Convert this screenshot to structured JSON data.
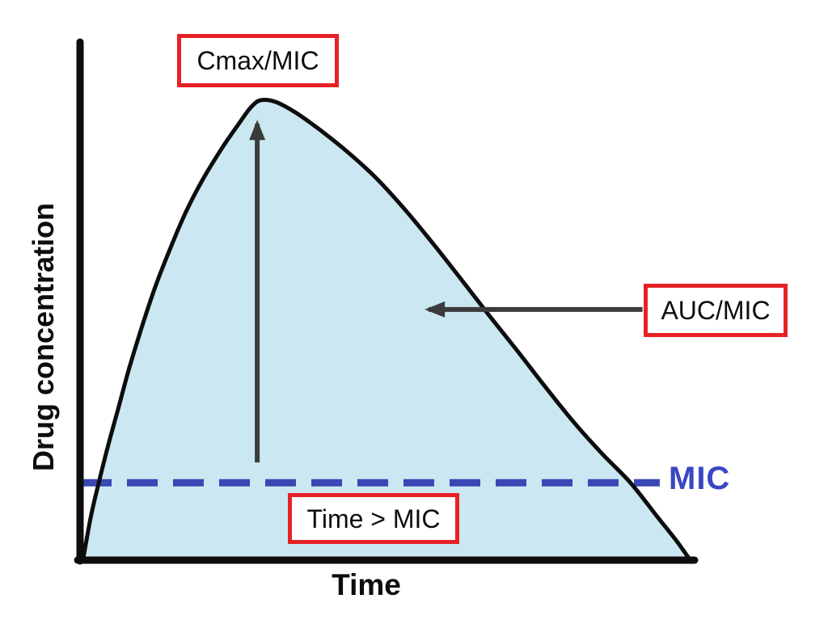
{
  "colors": {
    "curve_stroke": "#0d0d0d",
    "area_fill": "#cbe8f2",
    "mic_line": "#3a47b4",
    "mic_text": "#3a47c4",
    "annotation_box_border": "#e62227",
    "annotation_box_background": "#ffffff",
    "arrow": "#3b3b3b",
    "background": "#ffffff"
  },
  "labels": {
    "cmax_box": "Cmax/MIC",
    "auc_box": "AUC/MIC",
    "time_mic_box": "Time > MIC",
    "mic": "MIC"
  },
  "chart_data": {
    "type": "area",
    "title": "",
    "xlabel": "Time",
    "ylabel": "Drug concentration",
    "x_ticks": [],
    "y_ticks": [],
    "grid": "off",
    "axis_range_note": "no numeric scale shown; values normalized 0-1 of peak concentration and total time span",
    "series": [
      {
        "name": "drug-concentration-curve",
        "fill": true,
        "points_normalized": [
          [
            0.004,
            0.004
          ],
          [
            0.016,
            0.093
          ],
          [
            0.029,
            0.167
          ],
          [
            0.043,
            0.242
          ],
          [
            0.061,
            0.33
          ],
          [
            0.079,
            0.418
          ],
          [
            0.099,
            0.505
          ],
          [
            0.121,
            0.593
          ],
          [
            0.145,
            0.675
          ],
          [
            0.171,
            0.756
          ],
          [
            0.2,
            0.83
          ],
          [
            0.23,
            0.895
          ],
          [
            0.258,
            0.949
          ],
          [
            0.276,
            0.982
          ],
          [
            0.292,
            0.998
          ],
          [
            0.316,
            0.995
          ],
          [
            0.349,
            0.972
          ],
          [
            0.388,
            0.935
          ],
          [
            0.434,
            0.886
          ],
          [
            0.48,
            0.83
          ],
          [
            0.526,
            0.763
          ],
          [
            0.572,
            0.689
          ],
          [
            0.618,
            0.611
          ],
          [
            0.664,
            0.532
          ],
          [
            0.711,
            0.453
          ],
          [
            0.757,
            0.374
          ],
          [
            0.803,
            0.298
          ],
          [
            0.849,
            0.23
          ],
          [
            0.895,
            0.167
          ],
          [
            0.937,
            0.096
          ],
          [
            0.968,
            0.044
          ],
          [
            0.989,
            0.005
          ]
        ]
      }
    ],
    "reference_lines": [
      {
        "name": "MIC",
        "label": "MIC",
        "orientation": "horizontal",
        "style": "dashed",
        "level_normalized": 0.168,
        "x_start_normalized": 0.0,
        "x_end_normalized": 0.942
      }
    ],
    "annotations": [
      {
        "label": "Cmax/MIC",
        "type": "boxed-label-with-arrow",
        "arrow_from_normalized": [
          0.287,
          0.212
        ],
        "arrow_to_normalized": [
          0.287,
          0.947
        ]
      },
      {
        "label": "AUC/MIC",
        "type": "boxed-label-with-arrow",
        "arrow_from_normalized": [
          0.914,
          0.544
        ],
        "arrow_to_normalized": [
          0.566,
          0.544
        ]
      },
      {
        "label": "Time > MIC",
        "type": "boxed-label",
        "meaning": "duration that concentration exceeds MIC"
      }
    ]
  }
}
